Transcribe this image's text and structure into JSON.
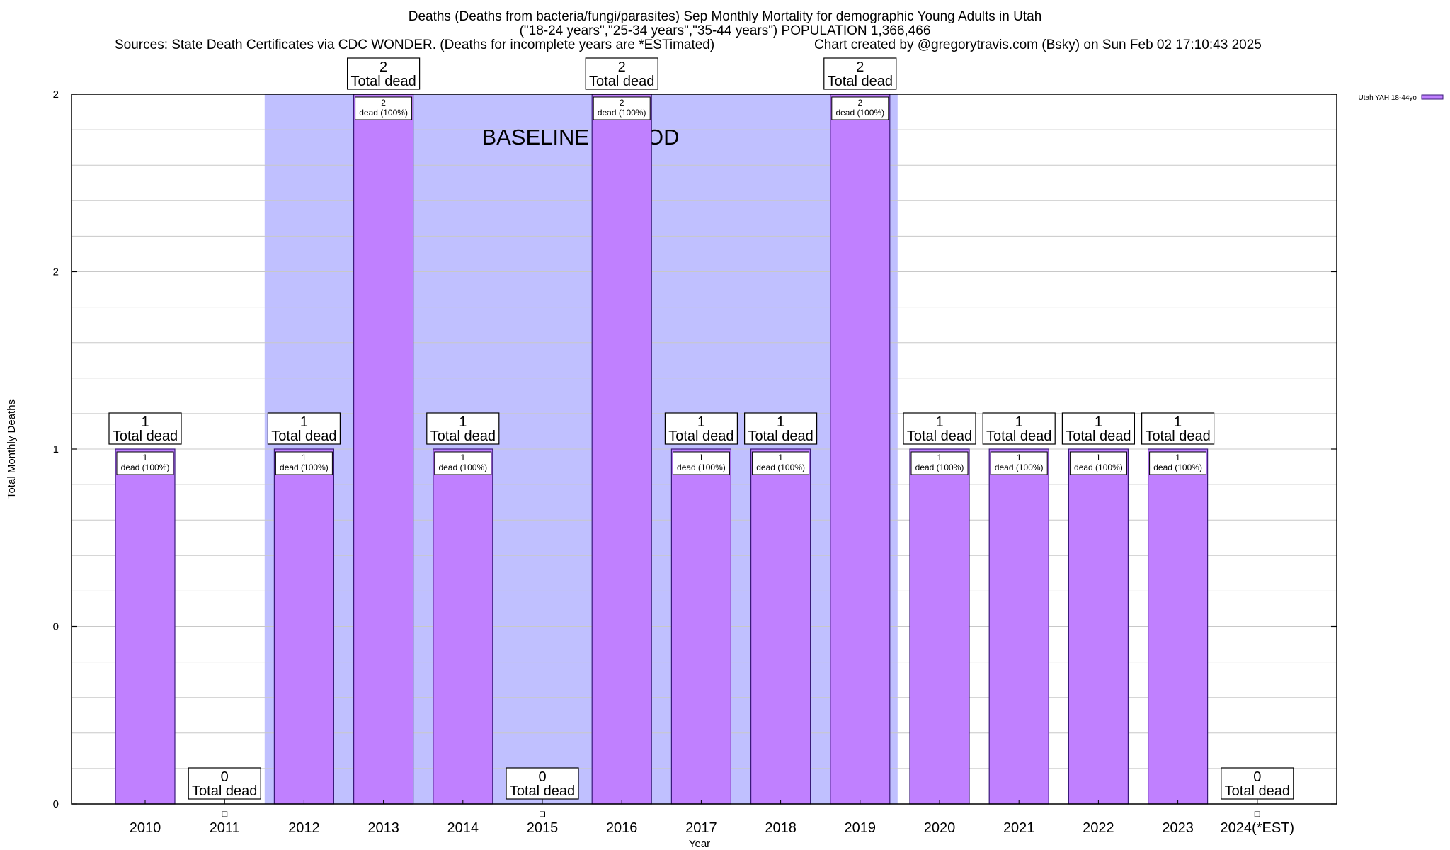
{
  "title": {
    "line1": "Deaths (Deaths from bacteria/fungi/parasites) Sep Monthly Mortality for demographic Young Adults in Utah",
    "line2": "(\"18-24 years\",\"25-34 years\",\"35-44 years\") POPULATION 1,366,466",
    "sources": "Sources: State Death Certificates via CDC WONDER. (Deaths for incomplete years are *ESTimated)",
    "credit": "Chart created by @gregorytravis.com (Bsky) on Sun Feb 02 17:10:43 2025"
  },
  "colors": {
    "bar_fill": "#c080ff",
    "bar_edge": "#3a1a7a",
    "baseline_shade": "#c0c0ff",
    "grid": "#c8c8c8",
    "axis": "#000000"
  },
  "chart_data": {
    "type": "bar",
    "title": "Deaths (Deaths from bacteria/fungi/parasites) Sep Monthly Mortality for demographic Young Adults in Utah",
    "xlabel": "Year",
    "ylabel": "Total Monthly Deaths",
    "ylim": [
      0,
      2
    ],
    "yticks": [
      0,
      0.5,
      1,
      1.5,
      2
    ],
    "ytick_labels": [
      "0",
      "0",
      "1",
      "2",
      "2"
    ],
    "grid": true,
    "legend_position": "top-right",
    "categories": [
      "2010",
      "2011",
      "2012",
      "2013",
      "2014",
      "2015",
      "2016",
      "2017",
      "2018",
      "2019",
      "2020",
      "2021",
      "2022",
      "2023",
      "2024(*EST)"
    ],
    "series": [
      {
        "name": "Utah YAH 18-44yo",
        "values": [
          1,
          0,
          1,
          2,
          1,
          0,
          2,
          1,
          1,
          2,
          1,
          1,
          1,
          1,
          0
        ]
      }
    ],
    "total_labels": [
      {
        "num": "1",
        "text": "Total dead"
      },
      {
        "num": "0",
        "text": "Total dead"
      },
      {
        "num": "1",
        "text": "Total dead"
      },
      {
        "num": "2",
        "text": "Total dead"
      },
      {
        "num": "1",
        "text": "Total dead"
      },
      {
        "num": "0",
        "text": "Total dead"
      },
      {
        "num": "2",
        "text": "Total dead"
      },
      {
        "num": "1",
        "text": "Total dead"
      },
      {
        "num": "1",
        "text": "Total dead"
      },
      {
        "num": "2",
        "text": "Total dead"
      },
      {
        "num": "1",
        "text": "Total dead"
      },
      {
        "num": "1",
        "text": "Total dead"
      },
      {
        "num": "1",
        "text": "Total dead"
      },
      {
        "num": "1",
        "text": "Total dead"
      },
      {
        "num": "0",
        "text": "Total dead"
      }
    ],
    "inner_labels": [
      {
        "num": "1",
        "text": "dead (100%)"
      },
      null,
      {
        "num": "1",
        "text": "dead (100%)"
      },
      {
        "num": "2",
        "text": "dead (100%)"
      },
      {
        "num": "1",
        "text": "dead (100%)"
      },
      null,
      {
        "num": "2",
        "text": "dead (100%)"
      },
      {
        "num": "1",
        "text": "dead (100%)"
      },
      {
        "num": "1",
        "text": "dead (100%)"
      },
      {
        "num": "2",
        "text": "dead (100%)"
      },
      {
        "num": "1",
        "text": "dead (100%)"
      },
      {
        "num": "1",
        "text": "dead (100%)"
      },
      {
        "num": "1",
        "text": "dead (100%)"
      },
      {
        "num": "1",
        "text": "dead (100%)"
      },
      null
    ],
    "annotations": [
      {
        "text": "BASELINE PERIOD",
        "span": [
          "2012",
          "2019"
        ]
      }
    ]
  }
}
